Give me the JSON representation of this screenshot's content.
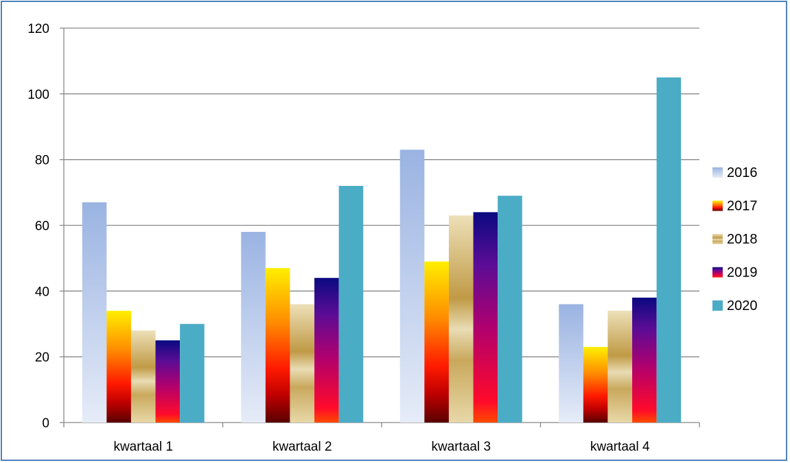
{
  "chart_data": {
    "type": "bar",
    "categories": [
      "kwartaal 1",
      "kwartaal 2",
      "kwartaal 3",
      "kwartaal 4"
    ],
    "series": [
      {
        "name": "2016",
        "values": [
          67,
          58,
          83,
          36
        ],
        "color": "#A3B9E6"
      },
      {
        "name": "2017",
        "values": [
          34,
          47,
          49,
          23
        ],
        "color": "#FF6A00"
      },
      {
        "name": "2018",
        "values": [
          28,
          36,
          63,
          34
        ],
        "color": "#C9A85C"
      },
      {
        "name": "2019",
        "values": [
          25,
          44,
          64,
          38
        ],
        "color": "#7A1FA0"
      },
      {
        "name": "2020",
        "values": [
          30,
          72,
          69,
          105
        ],
        "color": "#4BACC6"
      }
    ],
    "ylim": [
      0,
      120
    ],
    "yticks": [
      0,
      20,
      40,
      60,
      80,
      100,
      120
    ],
    "grid": true,
    "legend_position": "right",
    "title": "",
    "xlabel": "",
    "ylabel": ""
  }
}
